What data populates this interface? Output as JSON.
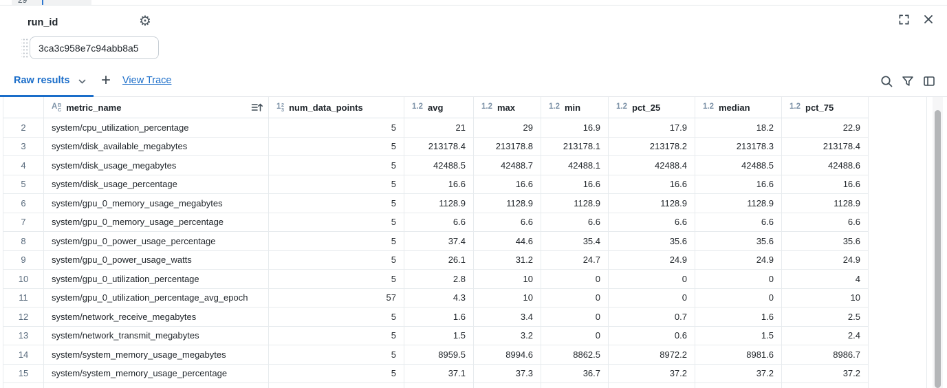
{
  "colors": {
    "accent_blue": "#1a6dc9",
    "icon_dark": "#3d4a54",
    "header_type_icon": "#7e93a8",
    "row_number_text": "#56687a",
    "grid_border": "#e7ebee"
  },
  "background_fragment": {
    "line_number": "29"
  },
  "panel": {
    "title": "run_id",
    "input_value": "3ca3c958e7c94abb8a5"
  },
  "tab_bar": {
    "active_tab": "Raw results",
    "add_button": "+",
    "view_trace_link": "View Trace"
  },
  "icons": {
    "settings": "⚙",
    "fullscreen": "corner-brackets",
    "close": "x-mark",
    "chevron_down": "chevron-down",
    "search": "magnifier",
    "filter": "funnel",
    "columns": "split-panel",
    "sort": "sort-ascending",
    "drag_handle": "dot-grid"
  },
  "table": {
    "columns": [
      {
        "label": "metric_name",
        "type": "string",
        "sorted": true
      },
      {
        "label": "num_data_points",
        "type": "integer",
        "sorted": false
      },
      {
        "label": "avg",
        "type": "float",
        "sorted": false
      },
      {
        "label": "max",
        "type": "float",
        "sorted": false
      },
      {
        "label": "min",
        "type": "float",
        "sorted": false
      },
      {
        "label": "pct_25",
        "type": "float",
        "sorted": false
      },
      {
        "label": "median",
        "type": "float",
        "sorted": false
      },
      {
        "label": "pct_75",
        "type": "float",
        "sorted": false
      }
    ],
    "rows": [
      {
        "n": 2,
        "cells": [
          "system/cpu_utilization_percentage",
          5,
          21,
          29,
          16.9,
          17.9,
          18.2,
          22.9
        ]
      },
      {
        "n": 3,
        "cells": [
          "system/disk_available_megabytes",
          5,
          213178.4,
          213178.8,
          213178.1,
          213178.2,
          213178.3,
          213178.4
        ]
      },
      {
        "n": 4,
        "cells": [
          "system/disk_usage_megabytes",
          5,
          42488.5,
          42488.7,
          42488.1,
          42488.4,
          42488.5,
          42488.6
        ]
      },
      {
        "n": 5,
        "cells": [
          "system/disk_usage_percentage",
          5,
          16.6,
          16.6,
          16.6,
          16.6,
          16.6,
          16.6
        ]
      },
      {
        "n": 6,
        "cells": [
          "system/gpu_0_memory_usage_megabytes",
          5,
          1128.9,
          1128.9,
          1128.9,
          1128.9,
          1128.9,
          1128.9
        ]
      },
      {
        "n": 7,
        "cells": [
          "system/gpu_0_memory_usage_percentage",
          5,
          6.6,
          6.6,
          6.6,
          6.6,
          6.6,
          6.6
        ]
      },
      {
        "n": 8,
        "cells": [
          "system/gpu_0_power_usage_percentage",
          5,
          37.4,
          44.6,
          35.4,
          35.6,
          35.6,
          35.6
        ]
      },
      {
        "n": 9,
        "cells": [
          "system/gpu_0_power_usage_watts",
          5,
          26.1,
          31.2,
          24.7,
          24.9,
          24.9,
          24.9
        ]
      },
      {
        "n": 10,
        "cells": [
          "system/gpu_0_utilization_percentage",
          5,
          2.8,
          10,
          0,
          0,
          0,
          4
        ]
      },
      {
        "n": 11,
        "cells": [
          "system/gpu_0_utilization_percentage_avg_epoch",
          57,
          4.3,
          10,
          0,
          0,
          0,
          10
        ]
      },
      {
        "n": 12,
        "cells": [
          "system/network_receive_megabytes",
          5,
          1.6,
          3.4,
          0,
          0.7,
          1.6,
          2.5
        ]
      },
      {
        "n": 13,
        "cells": [
          "system/network_transmit_megabytes",
          5,
          1.5,
          3.2,
          0,
          0.6,
          1.5,
          2.4
        ]
      },
      {
        "n": 14,
        "cells": [
          "system/system_memory_usage_megabytes",
          5,
          8959.5,
          8994.6,
          8862.5,
          8972.2,
          8981.6,
          8986.7
        ]
      },
      {
        "n": 15,
        "cells": [
          "system/system_memory_usage_percentage",
          5,
          37.1,
          37.3,
          36.7,
          37.2,
          37.2,
          37.2
        ]
      }
    ]
  }
}
